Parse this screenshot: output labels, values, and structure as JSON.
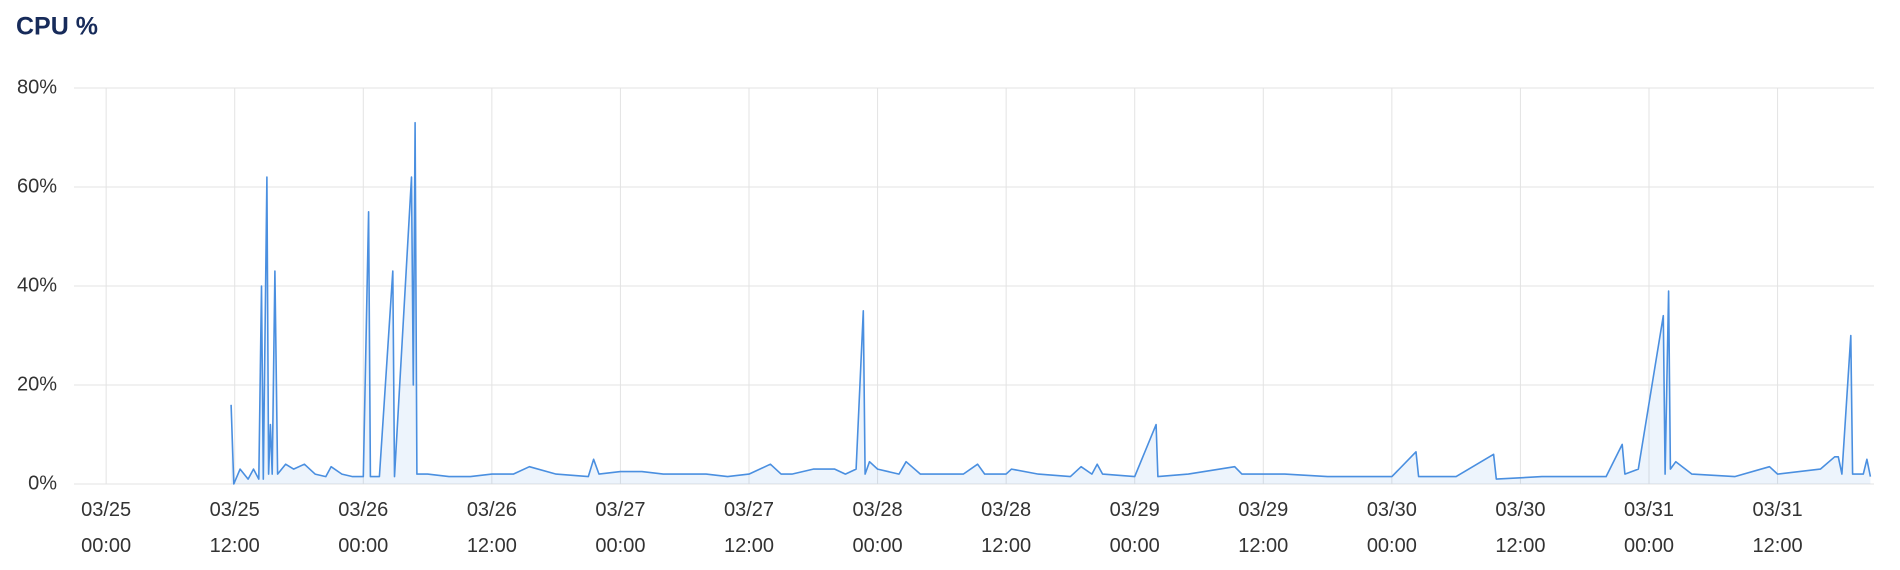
{
  "chart_data": {
    "type": "line",
    "title": "CPU %",
    "color": "#4a8fe0",
    "grid": true,
    "xlim": [
      "03/24 21:00",
      "03/31 21:00"
    ],
    "xticks": [
      "03/25 00:00",
      "03/25 12:00",
      "03/26 00:00",
      "03/26 12:00",
      "03/27 00:00",
      "03/27 12:00",
      "03/28 00:00",
      "03/28 12:00",
      "03/29 00:00",
      "03/29 12:00",
      "03/30 00:00",
      "03/30 12:00",
      "03/31 00:00",
      "03/31 12:00"
    ],
    "ylim": [
      0,
      80
    ],
    "yticks": [
      {
        "value": 0,
        "label": "0%"
      },
      {
        "value": 20,
        "label": "20%"
      },
      {
        "value": 40,
        "label": "40%"
      },
      {
        "value": 60,
        "label": "60%"
      },
      {
        "value": 80,
        "label": "80%"
      }
    ],
    "series": [
      {
        "name": "CPU",
        "color": "#4a8fe0",
        "x": [
          "03/25 11:40",
          "03/25 11:55",
          "03/25 12:30",
          "03/25 13:15",
          "03/25 13:45",
          "03/25 14:15",
          "03/25 14:30",
          "03/25 14:40",
          "03/25 15:00",
          "03/25 15:10",
          "03/25 15:20",
          "03/25 15:30",
          "03/25 15:45",
          "03/25 16:00",
          "03/25 16:45",
          "03/25 17:30",
          "03/25 18:30",
          "03/25 19:30",
          "03/25 20:30",
          "03/25 21:00",
          "03/25 22:00",
          "03/25 23:00",
          "03/26 00:00",
          "03/26 00:30",
          "03/26 00:40",
          "03/26 01:30",
          "03/26 02:45",
          "03/26 02:55",
          "03/26 04:30",
          "03/26 04:40",
          "03/26 04:50",
          "03/26 05:00",
          "03/26 06:00",
          "03/26 08:00",
          "03/26 10:00",
          "03/26 12:00",
          "03/26 14:00",
          "03/26 15:30",
          "03/26 18:00",
          "03/26 21:00",
          "03/26 21:30",
          "03/26 22:00",
          "03/27 00:00",
          "03/27 02:00",
          "03/27 04:00",
          "03/27 06:00",
          "03/27 08:00",
          "03/27 10:00",
          "03/27 12:00",
          "03/27 14:00",
          "03/27 15:00",
          "03/27 16:00",
          "03/27 18:00",
          "03/27 20:00",
          "03/27 21:00",
          "03/27 22:00",
          "03/27 22:40",
          "03/27 22:50",
          "03/27 23:15",
          "03/28 00:00",
          "03/28 02:00",
          "03/28 02:40",
          "03/28 04:00",
          "03/28 08:00",
          "03/28 09:20",
          "03/28 10:00",
          "03/28 12:00",
          "03/28 12:30",
          "03/28 15:00",
          "03/28 18:00",
          "03/28 19:00",
          "03/28 20:00",
          "03/28 20:30",
          "03/28 21:00",
          "03/29 00:00",
          "03/29 02:00",
          "03/29 02:10",
          "03/29 05:00",
          "03/29 09:20",
          "03/29 10:00",
          "03/29 14:00",
          "03/29 18:00",
          "03/30 00:00",
          "03/30 02:15",
          "03/30 02:30",
          "03/30 06:00",
          "03/30 09:30",
          "03/30 09:45",
          "03/30 14:00",
          "03/30 20:00",
          "03/30 21:30",
          "03/30 21:45",
          "03/30 23:00",
          "03/31 01:20",
          "03/31 01:30",
          "03/31 01:50",
          "03/31 02:00",
          "03/31 02:30",
          "03/31 04:00",
          "03/31 08:00",
          "03/31 11:15",
          "03/31 12:00",
          "03/31 16:00",
          "03/31 17:20",
          "03/31 17:40",
          "03/31 18:00",
          "03/31 18:50",
          "03/31 19:00",
          "03/31 20:00",
          "03/31 20:20",
          "03/31 20:40"
        ],
        "values": [
          16,
          0,
          3,
          1,
          3,
          1,
          40,
          1,
          62,
          2,
          12,
          2,
          43,
          2,
          4,
          3,
          4,
          2,
          1.5,
          3.5,
          2,
          1.5,
          1.5,
          55,
          1.5,
          1.5,
          43,
          1.5,
          62,
          20,
          73,
          2,
          2,
          1.5,
          1.5,
          2,
          2,
          3.5,
          2,
          1.5,
          5,
          2,
          2.5,
          2.5,
          2,
          2,
          2,
          1.5,
          2,
          4,
          2,
          2,
          3,
          3,
          2,
          3,
          35,
          2,
          4.5,
          3,
          2,
          4.5,
          2,
          2,
          4,
          2,
          2,
          3,
          2,
          1.5,
          3.5,
          2,
          4,
          2,
          1.5,
          12,
          1.5,
          2,
          3.5,
          2,
          2,
          1.5,
          1.5,
          6.5,
          1.5,
          1.5,
          6,
          1,
          1.5,
          1.5,
          8,
          2,
          3,
          34,
          2,
          39,
          3,
          4.5,
          2,
          1.5,
          3.5,
          2,
          3,
          5.5,
          5.5,
          2,
          30,
          2,
          2,
          5,
          1.5
        ]
      }
    ]
  }
}
